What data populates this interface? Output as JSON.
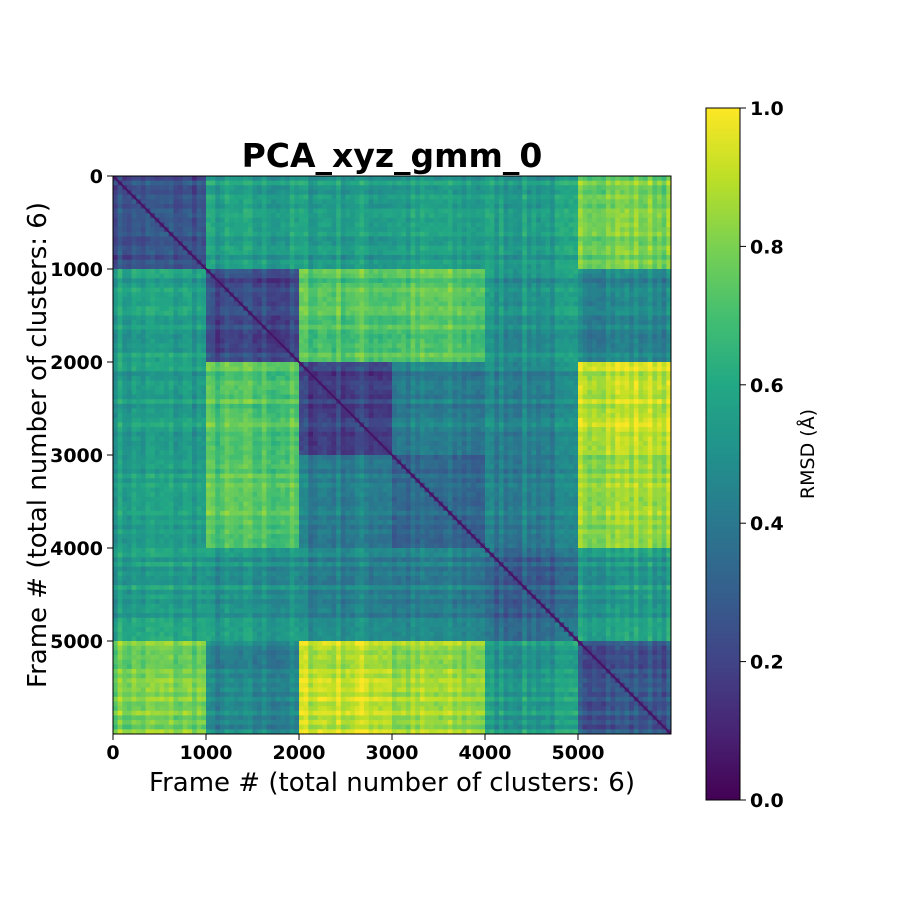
{
  "chart_data": {
    "type": "heatmap",
    "title": "PCA_xyz_gmm_0",
    "xlabel": "Frame # (total number of clusters: 6)",
    "ylabel": "Frame # (total number of clusters: 6)",
    "xlim": [
      0,
      6000
    ],
    "ylim": [
      6000,
      0
    ],
    "x_ticks": [
      0,
      1000,
      2000,
      3000,
      4000,
      5000
    ],
    "x_tick_labels": [
      "0",
      "1000",
      "2000",
      "3000",
      "4000",
      "5000"
    ],
    "y_ticks": [
      0,
      1000,
      2000,
      3000,
      4000,
      5000
    ],
    "y_tick_labels": [
      "0",
      "1000",
      "2000",
      "3000",
      "4000",
      "5000"
    ],
    "colormap": "viridis",
    "colorbar": {
      "label": "RMSD (Å)",
      "range": [
        0.0,
        1.0
      ],
      "ticks": [
        0.0,
        0.2,
        0.4,
        0.6,
        0.8,
        1.0
      ],
      "tick_labels": [
        "0.0",
        "0.2",
        "0.4",
        "0.6",
        "0.8",
        "1.0"
      ]
    },
    "block_edges": [
      0,
      1000,
      2000,
      3000,
      4000,
      5000,
      6000
    ],
    "block_mean_rmsd": [
      [
        0.25,
        0.55,
        0.55,
        0.55,
        0.55,
        0.8
      ],
      [
        0.55,
        0.2,
        0.72,
        0.72,
        0.5,
        0.45
      ],
      [
        0.55,
        0.72,
        0.2,
        0.42,
        0.45,
        0.92
      ],
      [
        0.55,
        0.72,
        0.42,
        0.32,
        0.42,
        0.85
      ],
      [
        0.45,
        0.55,
        0.5,
        0.58,
        0.32,
        0.55
      ],
      [
        0.82,
        0.5,
        0.95,
        0.85,
        0.58,
        0.28
      ]
    ],
    "diagonal_rmsd": 0.05
  }
}
